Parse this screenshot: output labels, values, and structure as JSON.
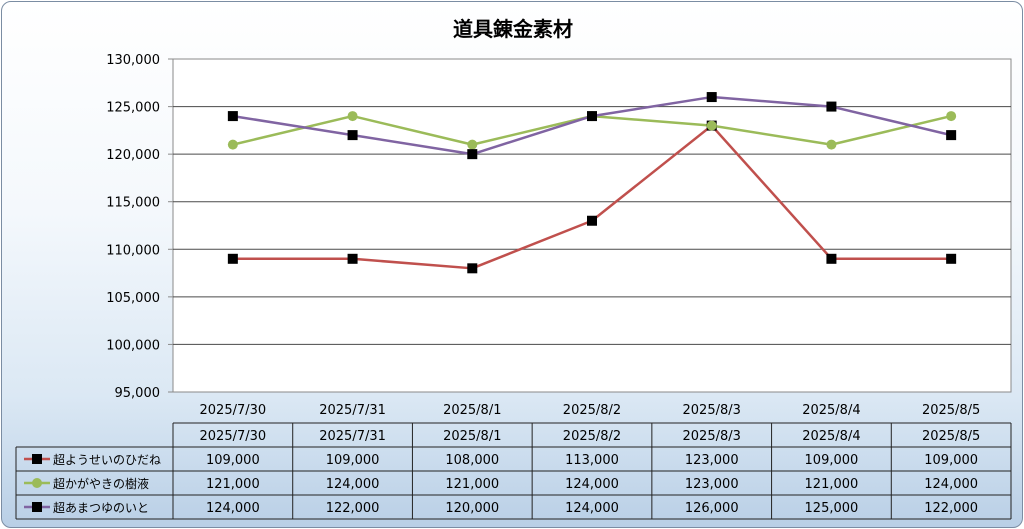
{
  "chart_data": {
    "type": "line",
    "title": "道具錬金素材",
    "categories": [
      "2025/7/30",
      "2025/7/31",
      "2025/8/1",
      "2025/8/2",
      "2025/8/3",
      "2025/8/4",
      "2025/8/5"
    ],
    "ylim": [
      95000,
      130000
    ],
    "y_ticks": [
      "130,000",
      "125,000",
      "120,000",
      "115,000",
      "110,000",
      "105,000",
      "100,000",
      "95,000"
    ],
    "grid": true,
    "legend": "data-table",
    "series": [
      {
        "name": "超ようせいのひだね",
        "color": "#c0504d",
        "marker": "square",
        "marker_color": "#000000",
        "values": [
          109000,
          109000,
          108000,
          113000,
          123000,
          109000,
          109000
        ],
        "labels": [
          "109,000",
          "109,000",
          "108,000",
          "113,000",
          "123,000",
          "109,000",
          "109,000"
        ]
      },
      {
        "name": "超かがやきの樹液",
        "color": "#9bbb59",
        "marker": "circle",
        "marker_color": "#9bbb59",
        "values": [
          121000,
          124000,
          121000,
          124000,
          123000,
          121000,
          124000
        ],
        "labels": [
          "121,000",
          "124,000",
          "121,000",
          "124,000",
          "123,000",
          "121,000",
          "124,000"
        ]
      },
      {
        "name": "超あまつゆのいと",
        "color": "#8064a2",
        "marker": "square",
        "marker_color": "#000000",
        "values": [
          124000,
          122000,
          120000,
          124000,
          126000,
          125000,
          122000
        ],
        "labels": [
          "124,000",
          "122,000",
          "120,000",
          "124,000",
          "126,000",
          "125,000",
          "122,000"
        ]
      }
    ]
  }
}
